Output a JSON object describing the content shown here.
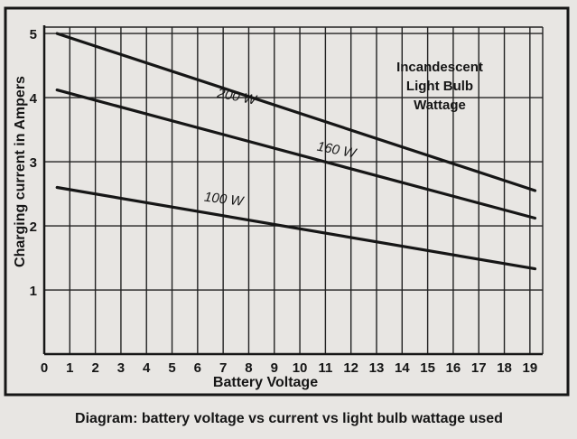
{
  "chart_data": {
    "type": "line",
    "xlabel": "Battery Voltage",
    "ylabel": "Charging current in Ampers",
    "legend_title_lines": [
      "Incandescent",
      "Light Bulb",
      "Wattage"
    ],
    "xlim": [
      0,
      19.5
    ],
    "ylim": [
      0,
      5.1
    ],
    "x_ticks": [
      0,
      1,
      2,
      3,
      4,
      5,
      6,
      7,
      8,
      9,
      10,
      11,
      12,
      13,
      14,
      15,
      16,
      17,
      18,
      19
    ],
    "y_ticks": [
      1,
      2,
      3,
      4,
      5
    ],
    "grid": true,
    "series": [
      {
        "name": "200W",
        "x": [
          0.5,
          19.2
        ],
        "y": [
          5.0,
          2.55
        ],
        "label_at": [
          7.5,
          3.95
        ],
        "label_rot": 11
      },
      {
        "name": "160W",
        "x": [
          0.5,
          19.2
        ],
        "y": [
          4.12,
          2.12
        ],
        "label_at": [
          11.4,
          3.12
        ],
        "label_rot": 11
      },
      {
        "name": "100W",
        "x": [
          0.5,
          19.2
        ],
        "y": [
          2.6,
          1.33
        ],
        "label_at": [
          7.0,
          2.35
        ],
        "label_rot": 7
      }
    ]
  },
  "caption": "Diagram: battery voltage vs current vs light bulb wattage used",
  "colors": {
    "paper": "#e8e6e3",
    "ink": "#161616",
    "grid": "#222222"
  }
}
